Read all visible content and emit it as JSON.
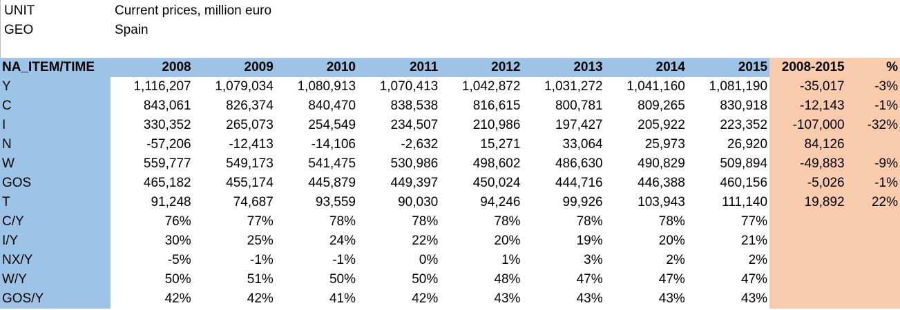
{
  "meta": {
    "unit_label": "UNIT",
    "unit_value": "Current prices, million euro",
    "geo_label": "GEO",
    "geo_value": "Spain"
  },
  "colors": {
    "header_blue": "#9dc3e6",
    "summary_orange": "#f8cbad"
  },
  "table": {
    "headers": [
      "NA_ITEM/TIME",
      "2008",
      "2009",
      "2010",
      "2011",
      "2012",
      "2013",
      "2014",
      "2015",
      "2008-2015",
      "%"
    ],
    "rows": [
      [
        "Y",
        "1,116,207",
        "1,079,034",
        "1,080,913",
        "1,070,413",
        "1,042,872",
        "1,031,272",
        "1,041,160",
        "1,081,190",
        "-35,017",
        "-3%"
      ],
      [
        "C",
        "843,061",
        "826,374",
        "840,470",
        "838,538",
        "816,615",
        "800,781",
        "809,265",
        "830,918",
        "-12,143",
        "-1%"
      ],
      [
        "I",
        "330,352",
        "265,073",
        "254,549",
        "234,507",
        "210,986",
        "197,427",
        "205,922",
        "223,352",
        "-107,000",
        "-32%"
      ],
      [
        "N",
        "-57,206",
        "-12,413",
        "-14,106",
        "-2,632",
        "15,271",
        "33,064",
        "25,973",
        "26,920",
        "84,126",
        ""
      ],
      [
        "W",
        "559,777",
        "549,173",
        "541,475",
        "530,986",
        "498,602",
        "486,630",
        "490,829",
        "509,894",
        "-49,883",
        "-9%"
      ],
      [
        "GOS",
        "465,182",
        "455,174",
        "445,879",
        "449,397",
        "450,024",
        "444,716",
        "446,388",
        "460,156",
        "-5,026",
        "-1%"
      ],
      [
        "T",
        "91,248",
        "74,687",
        "93,559",
        "90,030",
        "94,246",
        "99,926",
        "103,943",
        "111,140",
        "19,892",
        "22%"
      ],
      [
        "C/Y",
        "76%",
        "77%",
        "78%",
        "78%",
        "78%",
        "78%",
        "78%",
        "77%",
        "",
        ""
      ],
      [
        "I/Y",
        "30%",
        "25%",
        "24%",
        "22%",
        "20%",
        "19%",
        "20%",
        "21%",
        "",
        ""
      ],
      [
        "NX/Y",
        "-5%",
        "-1%",
        "-1%",
        "0%",
        "1%",
        "3%",
        "2%",
        "2%",
        "",
        ""
      ],
      [
        "W/Y",
        "50%",
        "51%",
        "50%",
        "50%",
        "48%",
        "47%",
        "47%",
        "47%",
        "",
        ""
      ],
      [
        "GOS/Y",
        "42%",
        "42%",
        "41%",
        "42%",
        "43%",
        "43%",
        "43%",
        "43%",
        "",
        ""
      ]
    ]
  }
}
